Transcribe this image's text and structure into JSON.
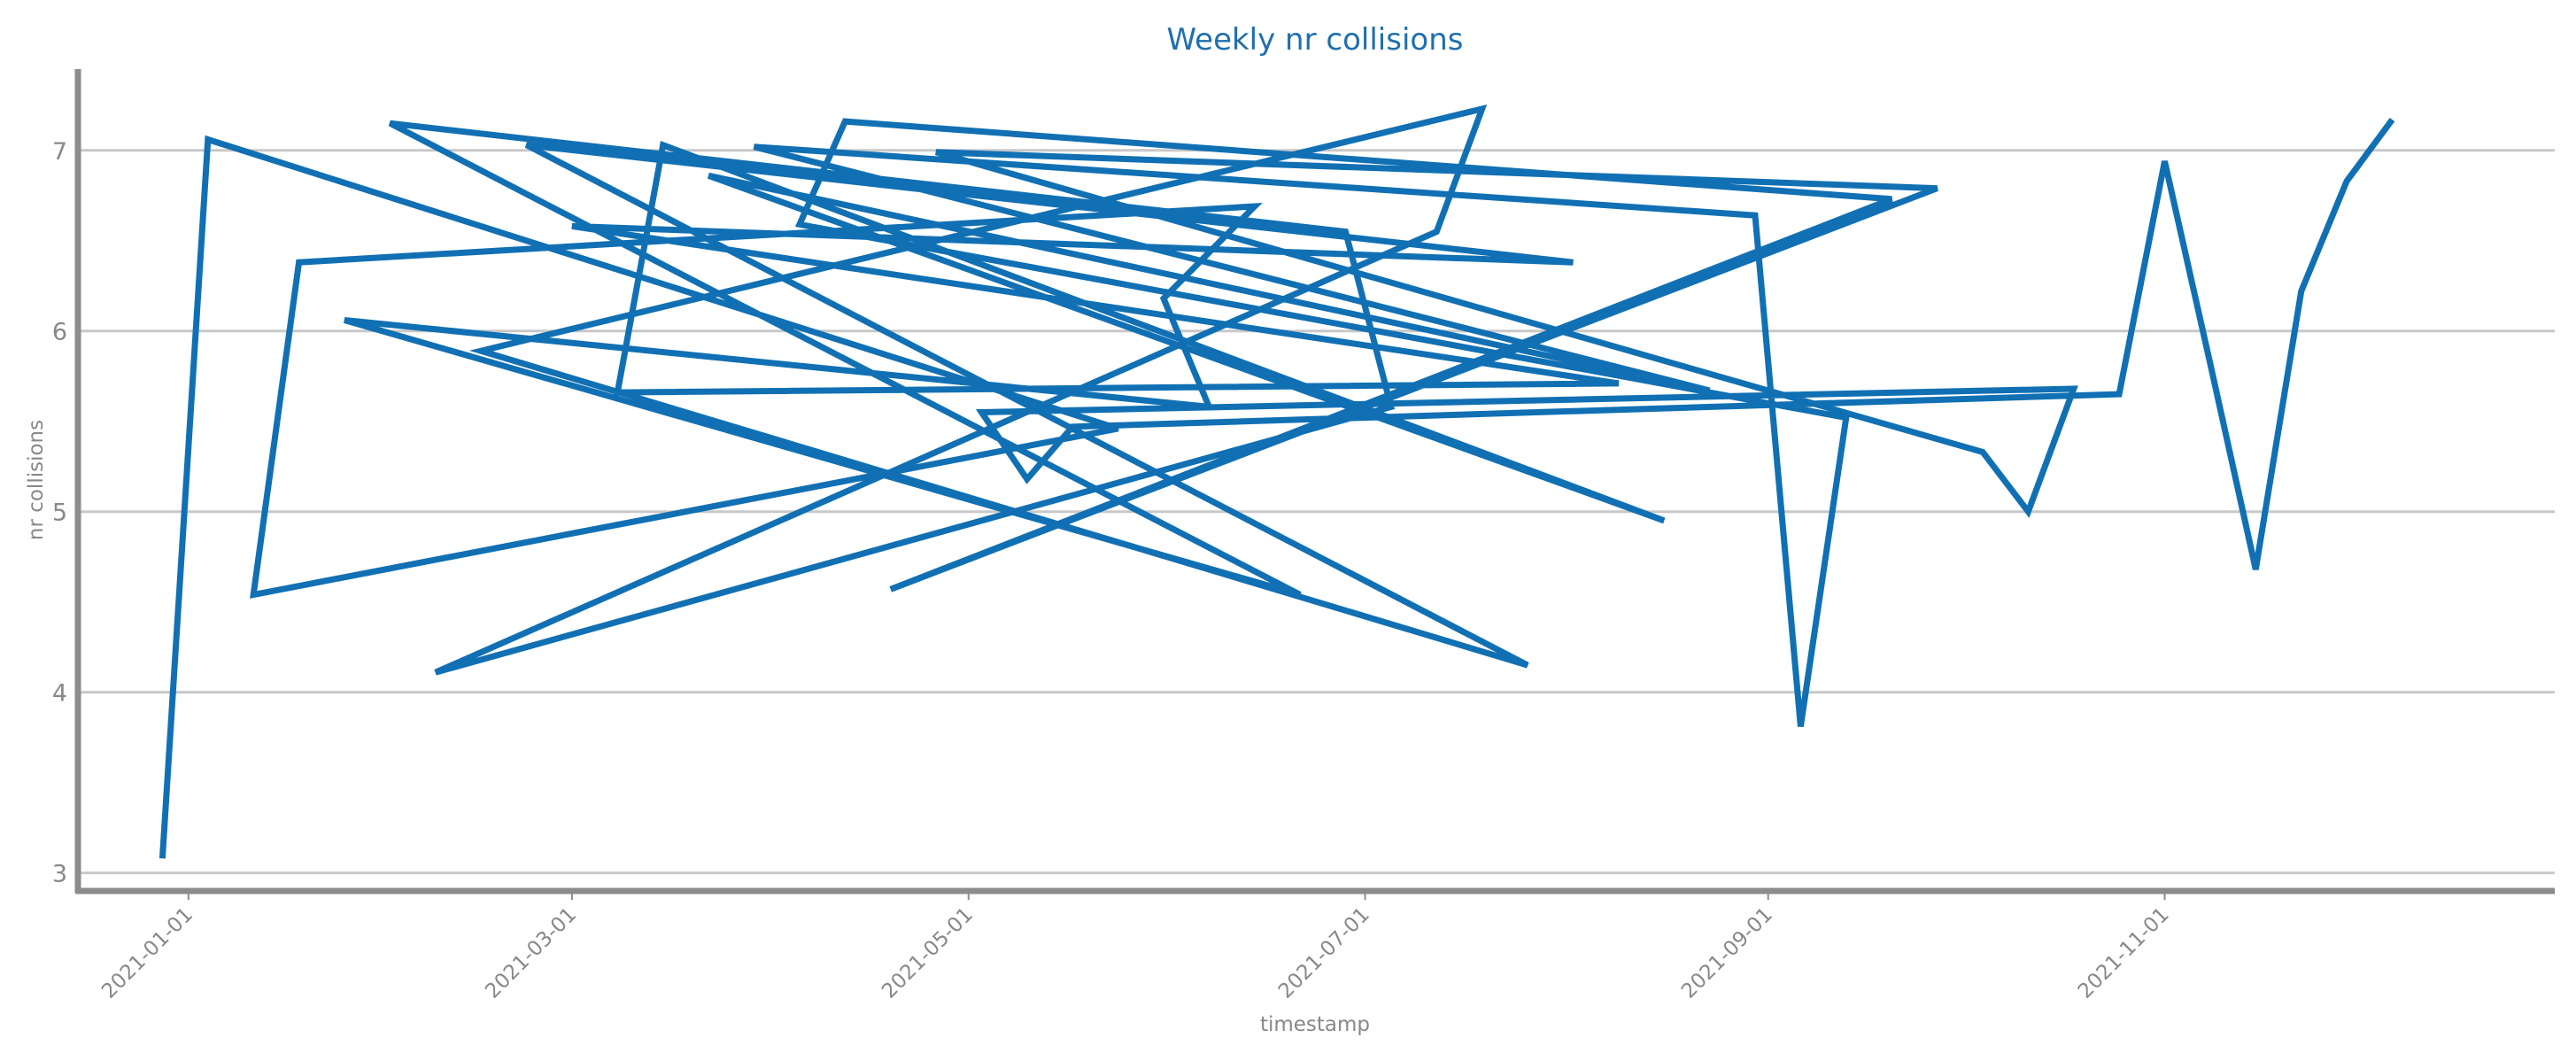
{
  "chart_data": {
    "type": "line",
    "title": "Weekly nr collisions",
    "xlabel": "timestamp",
    "ylabel": "nr collisions",
    "x_tick_labels": [
      "2021-01-01",
      "2021-03-01",
      "2021-05-01",
      "2021-07-01",
      "2021-09-01",
      "2021-11-01"
    ],
    "y_tick_labels": [
      "3",
      "4",
      "5",
      "6",
      "7"
    ],
    "ylim": [
      2.9,
      7.45
    ],
    "xlim": [
      "2020-12-15",
      "2021-12-31"
    ],
    "grid": "horizontal",
    "colors": {
      "line": "#1170b4",
      "grid": "#c8c8c8",
      "axis": "#8c8c8c",
      "title": "#1f6fae"
    },
    "series": [
      {
        "name": "",
        "x": [
          "2020-12-28",
          "2021-01-04",
          "2021-01-11",
          "2021-01-18",
          "2021-01-25",
          "2021-02-01",
          "2021-02-08",
          "2021-02-15",
          "2021-02-22",
          "2021-03-01",
          "2021-03-08",
          "2021-03-15",
          "2021-03-22",
          "2021-03-29",
          "2021-04-05",
          "2021-04-12",
          "2021-04-19",
          "2021-04-26",
          "2021-05-03",
          "2021-05-10",
          "2021-05-17",
          "2021-05-24",
          "2021-05-31",
          "2021-06-07",
          "2021-06-14",
          "2021-06-21",
          "2021-06-28",
          "2021-07-05",
          "2021-07-12",
          "2021-07-19",
          "2021-07-26",
          "2021-08-02",
          "2021-08-09",
          "2021-08-16",
          "2021-08-23",
          "2021-08-30",
          "2021-09-06",
          "2021-09-13",
          "2021-09-20",
          "2021-09-27",
          "2021-10-04",
          "2021-10-11",
          "2021-10-18",
          "2021-10-25",
          "2021-11-01",
          "2021-11-08",
          "2021-11-15",
          "2021-11-22",
          "2021-11-29",
          "2021-12-06"
        ],
        "y": [
          3.08,
          7.06,
          5.46,
          4.54,
          6.38,
          6.69,
          6.18,
          5.58,
          6.06,
          4.54,
          7.15,
          6.55,
          5.58,
          4.11,
          6.55,
          7.23,
          5.89,
          4.15,
          7.03,
          6.38,
          6.58,
          5.71,
          5.66,
          7.03,
          4.95,
          6.86,
          5.67,
          7.02,
          6.64,
          3.81,
          5.52,
          6.59,
          7.16,
          6.73,
          4.57,
          6.79,
          6.99,
          5.33,
          5.0,
          5.68,
          5.55,
          5.18,
          5.47,
          5.65,
          6.94,
          5.82,
          4.68,
          6.22,
          6.83,
          7.17
        ]
      }
    ]
  }
}
